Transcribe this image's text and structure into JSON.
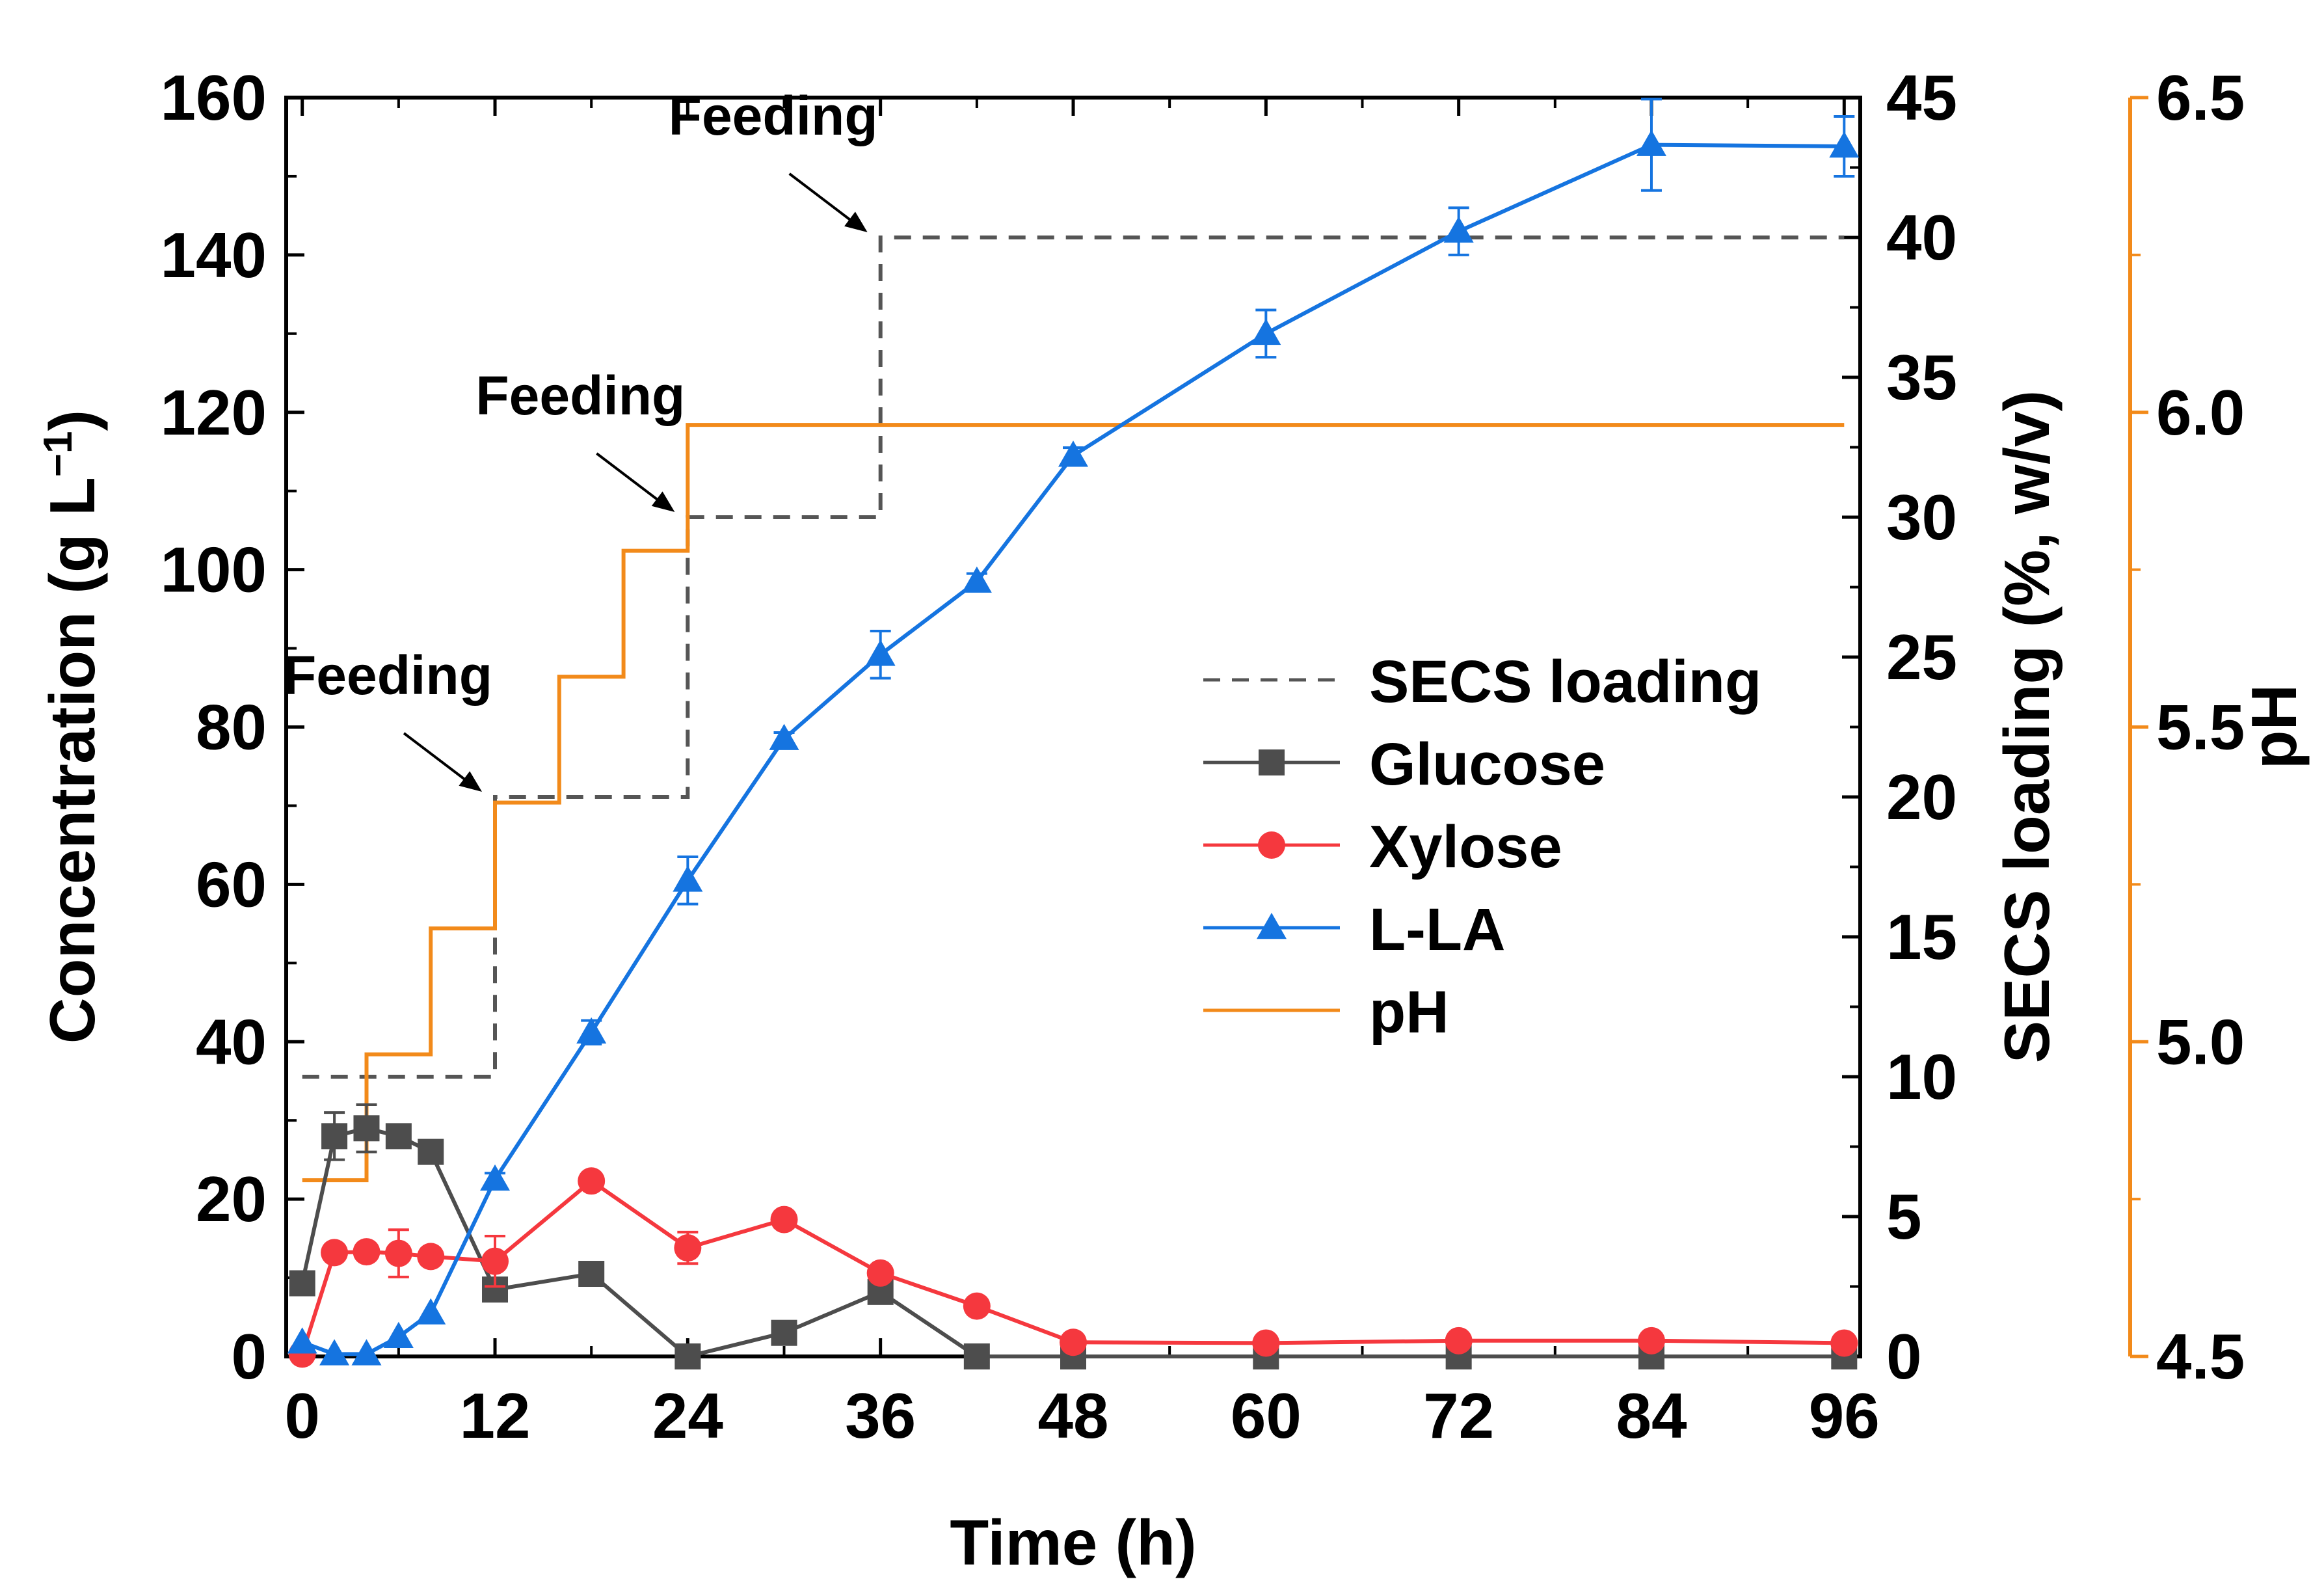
{
  "chart_data": {
    "type": "line",
    "x_axis": {
      "label": "Time (h)",
      "range": [
        -1,
        97
      ],
      "ticks": [
        "0",
        "12",
        "24",
        "36",
        "48",
        "60",
        "72",
        "84",
        "96"
      ]
    },
    "y_left": {
      "label": "Concentration (g L",
      "label_sup": "−1",
      "label_end": ")",
      "range": [
        0,
        160
      ],
      "ticks": [
        "0",
        "20",
        "40",
        "60",
        "80",
        "100",
        "120",
        "140",
        "160"
      ]
    },
    "y_right1": {
      "label": "SECS loading (%, w/v)",
      "range": [
        0,
        45
      ],
      "ticks": [
        "0",
        "5",
        "10",
        "15",
        "20",
        "25",
        "30",
        "35",
        "40",
        "45"
      ]
    },
    "y_right2": {
      "label": "pH",
      "range": [
        4.5,
        6.5
      ],
      "ticks": [
        "4.5",
        "5.0",
        "5.5",
        "6.0",
        "6.5"
      ],
      "color": "#f28a1a"
    },
    "series": [
      {
        "name": "SECS loading",
        "axis": "y_right1",
        "style": "step-dashed",
        "color": "#555555",
        "x": [
          0,
          12,
          12,
          24,
          24,
          36,
          36,
          96
        ],
        "y": [
          10,
          10,
          20,
          20,
          30,
          30,
          40,
          40
        ]
      },
      {
        "name": "Glucose",
        "axis": "y_left",
        "marker": "square",
        "color": "#4d4d4d",
        "x": [
          0,
          2,
          4,
          6,
          8,
          12,
          18,
          24,
          30,
          36,
          42,
          48,
          60,
          72,
          84,
          96
        ],
        "y": [
          9.3,
          28,
          29,
          28,
          26,
          8.5,
          10.5,
          0,
          3,
          8.2,
          0,
          0,
          0,
          0,
          0,
          0
        ],
        "err": [
          0,
          3,
          3,
          1,
          1,
          0.5,
          0.5,
          0,
          0.3,
          0.5,
          0,
          0,
          0,
          0,
          0,
          0
        ]
      },
      {
        "name": "Xylose",
        "axis": "y_left",
        "marker": "circle",
        "color": "#f5383e",
        "x": [
          0,
          2,
          4,
          6,
          8,
          12,
          18,
          24,
          30,
          36,
          42,
          48,
          60,
          72,
          84,
          96
        ],
        "y": [
          0.3,
          13.2,
          13.3,
          13.1,
          12.7,
          12.1,
          22.3,
          13.8,
          17.4,
          10.6,
          6.4,
          1.8,
          1.7,
          2.0,
          2.0,
          1.7
        ],
        "err": [
          0,
          0.5,
          0.8,
          3,
          1,
          3.2,
          1,
          2,
          1,
          0.8,
          0.5,
          0.2,
          0.2,
          0.2,
          0.2,
          0.2
        ]
      },
      {
        "name": "L-LA",
        "axis": "y_left",
        "marker": "triangle",
        "color": "#1574e0",
        "x": [
          0,
          2,
          4,
          6,
          8,
          12,
          18,
          24,
          30,
          36,
          42,
          48,
          60,
          72,
          84,
          96
        ],
        "y": [
          1.8,
          0.3,
          0.3,
          2.5,
          5.5,
          22.5,
          41.2,
          60.5,
          78.5,
          89.2,
          98.5,
          114.5,
          130,
          143,
          154,
          153.8
        ],
        "err": [
          0,
          0,
          0,
          0,
          0,
          0.8,
          1.5,
          3,
          0.8,
          3,
          1,
          1,
          3,
          3,
          5.8,
          3.8
        ]
      },
      {
        "name": "pH",
        "axis": "y_right2",
        "style": "step-solid",
        "color": "#f28a1a",
        "x": [
          0,
          4,
          4,
          8,
          8,
          12,
          12,
          16,
          16,
          20,
          20,
          24,
          24,
          96
        ],
        "y": [
          4.78,
          4.78,
          4.98,
          4.98,
          5.18,
          5.18,
          5.38,
          5.38,
          5.58,
          5.58,
          5.78,
          5.78,
          5.98,
          5.98
        ]
      }
    ],
    "annotations": [
      {
        "text": "Feeding",
        "x": 12
      },
      {
        "text": "Feeding",
        "x": 24
      },
      {
        "text": "Feeding",
        "x": 36
      }
    ],
    "legend_position": "center-right"
  }
}
